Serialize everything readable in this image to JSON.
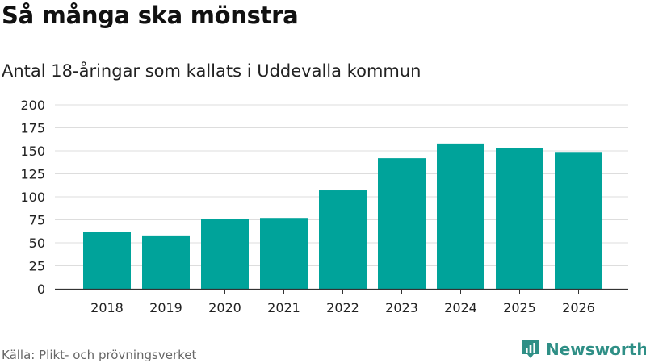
{
  "header": {
    "title": "Så många ska mönstra",
    "subtitle": "Antal 18-åringar som kallats i Uddevalla kommun"
  },
  "footer": {
    "source": "Källa: Plikt- och prövningsverket",
    "brand": "Newsworthy"
  },
  "colors": {
    "bar": "#00a39a",
    "grid": "#dddddd",
    "axis": "#333333",
    "brand": "#2f8f86"
  },
  "chart_data": {
    "type": "bar",
    "title": "Så många ska mönstra",
    "subtitle": "Antal 18-åringar som kallats i Uddevalla kommun",
    "xlabel": "",
    "ylabel": "",
    "categories": [
      "2018",
      "2019",
      "2020",
      "2021",
      "2022",
      "2023",
      "2024",
      "2025",
      "2026"
    ],
    "values": [
      62,
      58,
      76,
      77,
      107,
      142,
      158,
      153,
      148
    ],
    "ylim": [
      0,
      200
    ],
    "yticks": [
      0,
      25,
      50,
      75,
      100,
      125,
      150,
      175,
      200
    ],
    "grid": true
  }
}
